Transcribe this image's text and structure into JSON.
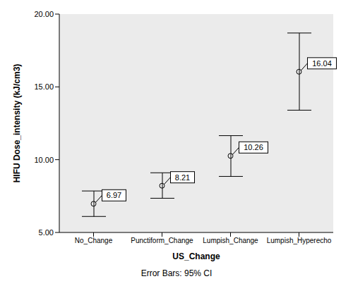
{
  "chart_data": {
    "type": "scatter",
    "xlabel": "US_Change",
    "ylabel": "HIFU Dose_intensity (kJ/cm3)",
    "footnote": "Error Bars: 95% CI",
    "categories": [
      "No_Change",
      "Punctiform_Change",
      "Lumpish_Change",
      "Lumpish_Hyperecho"
    ],
    "values": [
      6.97,
      8.21,
      10.26,
      16.04
    ],
    "ci_low": [
      6.1,
      7.35,
      8.85,
      13.4
    ],
    "ci_high": [
      7.85,
      9.1,
      11.65,
      18.7
    ],
    "ylim": [
      5,
      20
    ],
    "yticks": [
      {
        "value": 5,
        "label": "5.00"
      },
      {
        "value": 10,
        "label": "10.00"
      },
      {
        "value": 15,
        "label": "15.00"
      },
      {
        "value": 20,
        "label": "20.00"
      }
    ],
    "grid": false,
    "data_labels": true,
    "marker": "circle",
    "color": "#000000"
  }
}
